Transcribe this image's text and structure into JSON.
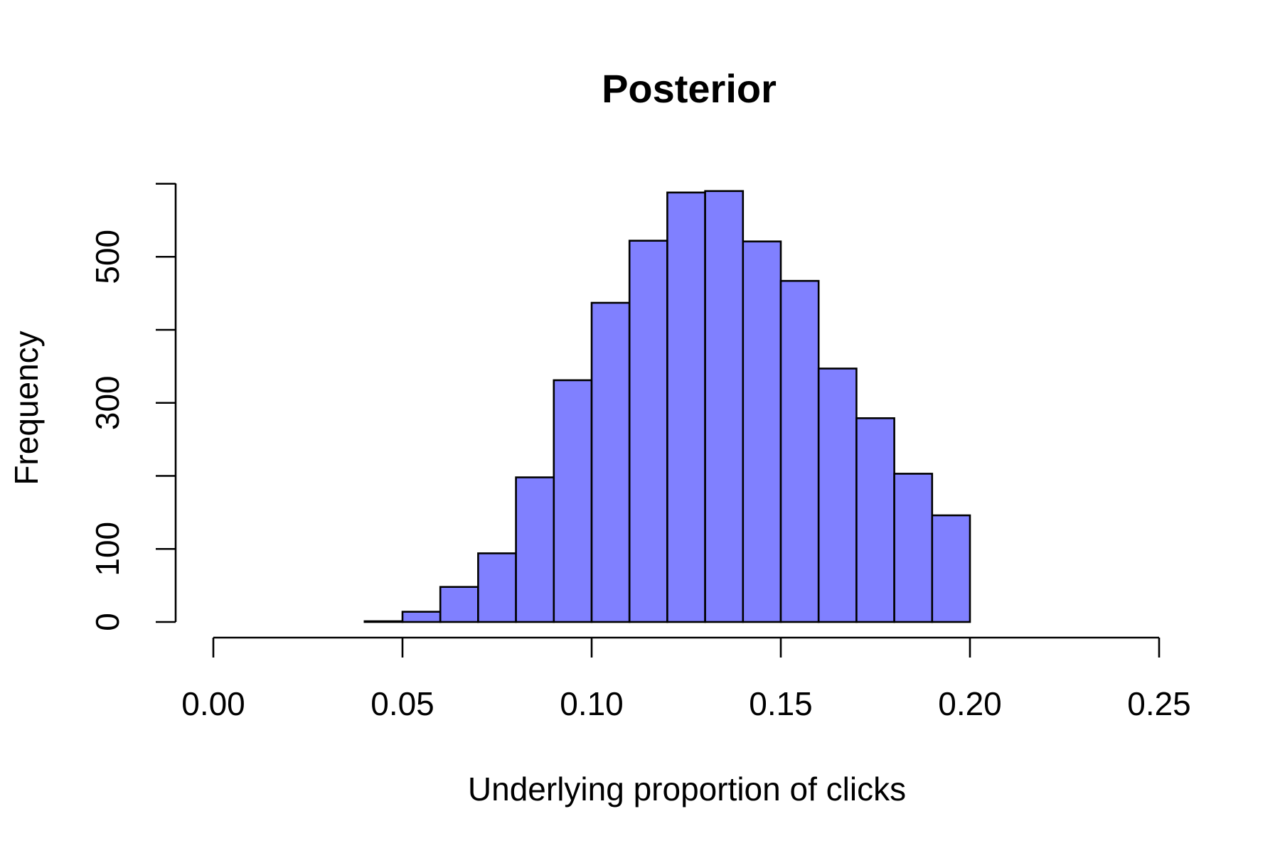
{
  "chart_data": {
    "type": "bar",
    "title": "Posterior",
    "xlabel": "Underlying proportion of clicks",
    "ylabel": "Frequency",
    "bin_edges": [
      0.04,
      0.05,
      0.06,
      0.07,
      0.08,
      0.09,
      0.1,
      0.11,
      0.12,
      0.13,
      0.14,
      0.15,
      0.16,
      0.17,
      0.18,
      0.19,
      0.2
    ],
    "values": [
      1,
      14,
      48,
      94,
      198,
      331,
      437,
      522,
      588,
      590,
      521,
      467,
      347,
      279,
      203,
      146
    ],
    "xlim": [
      0.0,
      0.25
    ],
    "ylim": [
      0,
      600
    ],
    "x_ticks": [
      "0.00",
      "0.05",
      "0.10",
      "0.15",
      "0.20",
      "0.25"
    ],
    "y_ticks": [
      "0",
      "100",
      "",
      "300",
      "",
      "500",
      ""
    ],
    "bar_color": "#8080ff",
    "grid": false
  }
}
